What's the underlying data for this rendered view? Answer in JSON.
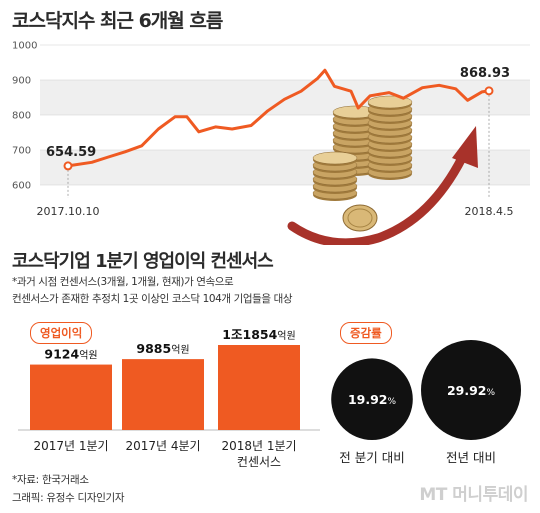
{
  "chart_data": [
    {
      "type": "line",
      "title": "코스닥지수 최근 6개월 흐름",
      "ylim": [
        600,
        1000
      ],
      "yticks": [
        "1000",
        "900",
        "800",
        "700",
        "600"
      ],
      "x_labels": [
        "2017.10.10",
        "2018.4.5"
      ],
      "series": [
        {
          "color": "#ef5a22",
          "x": [
            "2017-10-10",
            "2017-10-20",
            "2017-10-27",
            "2017-11-03",
            "2017-11-10",
            "2017-11-17",
            "2017-11-24",
            "2017-11-29",
            "2017-12-04",
            "2017-12-11",
            "2017-12-18",
            "2017-12-26",
            "2018-01-02",
            "2018-01-09",
            "2018-01-16",
            "2018-01-23",
            "2018-01-26",
            "2018-01-30",
            "2018-02-06",
            "2018-02-09",
            "2018-02-14",
            "2018-02-22",
            "2018-02-28",
            "2018-03-08",
            "2018-03-15",
            "2018-03-22",
            "2018-03-27",
            "2018-04-02",
            "2018-04-05"
          ],
          "values": [
            654.59,
            665,
            680,
            695,
            712,
            760,
            795,
            795,
            752,
            766,
            760,
            770,
            812,
            845,
            868,
            905,
            928,
            882,
            868,
            820,
            855,
            864,
            848,
            878,
            885,
            875,
            842,
            866,
            868.93
          ],
          "annotations": [
            {
              "label": "654.59",
              "value": 654.59
            },
            {
              "label": "868.93",
              "value": 868.93
            }
          ]
        }
      ]
    },
    {
      "type": "bar",
      "title": "코스닥기업 1분기 영업이익 컨센서스",
      "categories": [
        "2017년 1분기",
        "2017년 4분기",
        "2018년 1분기 컨센서스"
      ],
      "values": [
        9124,
        9885,
        11854
      ],
      "value_labels": [
        {
          "num": "9124",
          "unit": "억원"
        },
        {
          "num": "9885",
          "unit": "억원"
        },
        {
          "num": "1조1854",
          "unit": "억원"
        }
      ],
      "color": "#ef5a22"
    },
    {
      "type": "bubble",
      "categories": [
        "전 분기 대비",
        "전년 대비"
      ],
      "values": [
        19.92,
        29.92
      ],
      "value_labels": [
        "19.92",
        "29.92"
      ],
      "unit": "%",
      "color": "#111111"
    }
  ],
  "bar_panel": {
    "tag": "영업이익",
    "cat3_line1": "2018년 1분기",
    "cat3_line2": "컨센서스"
  },
  "bubble_panel": {
    "tag": "증감률"
  },
  "notes": {
    "line1": "*과거 시점 컨센서스(3개월, 1개월, 현재)가 연속으로",
    "line2": "컨센서스가 존재한 추정치 1곳 이상인 코스닥 104개 기업들을 대상"
  },
  "footer": {
    "source": "*자료: 한국거래소",
    "credit": "그래픽: 유정수 디자인기자"
  },
  "logo": "MT 머니투데이"
}
